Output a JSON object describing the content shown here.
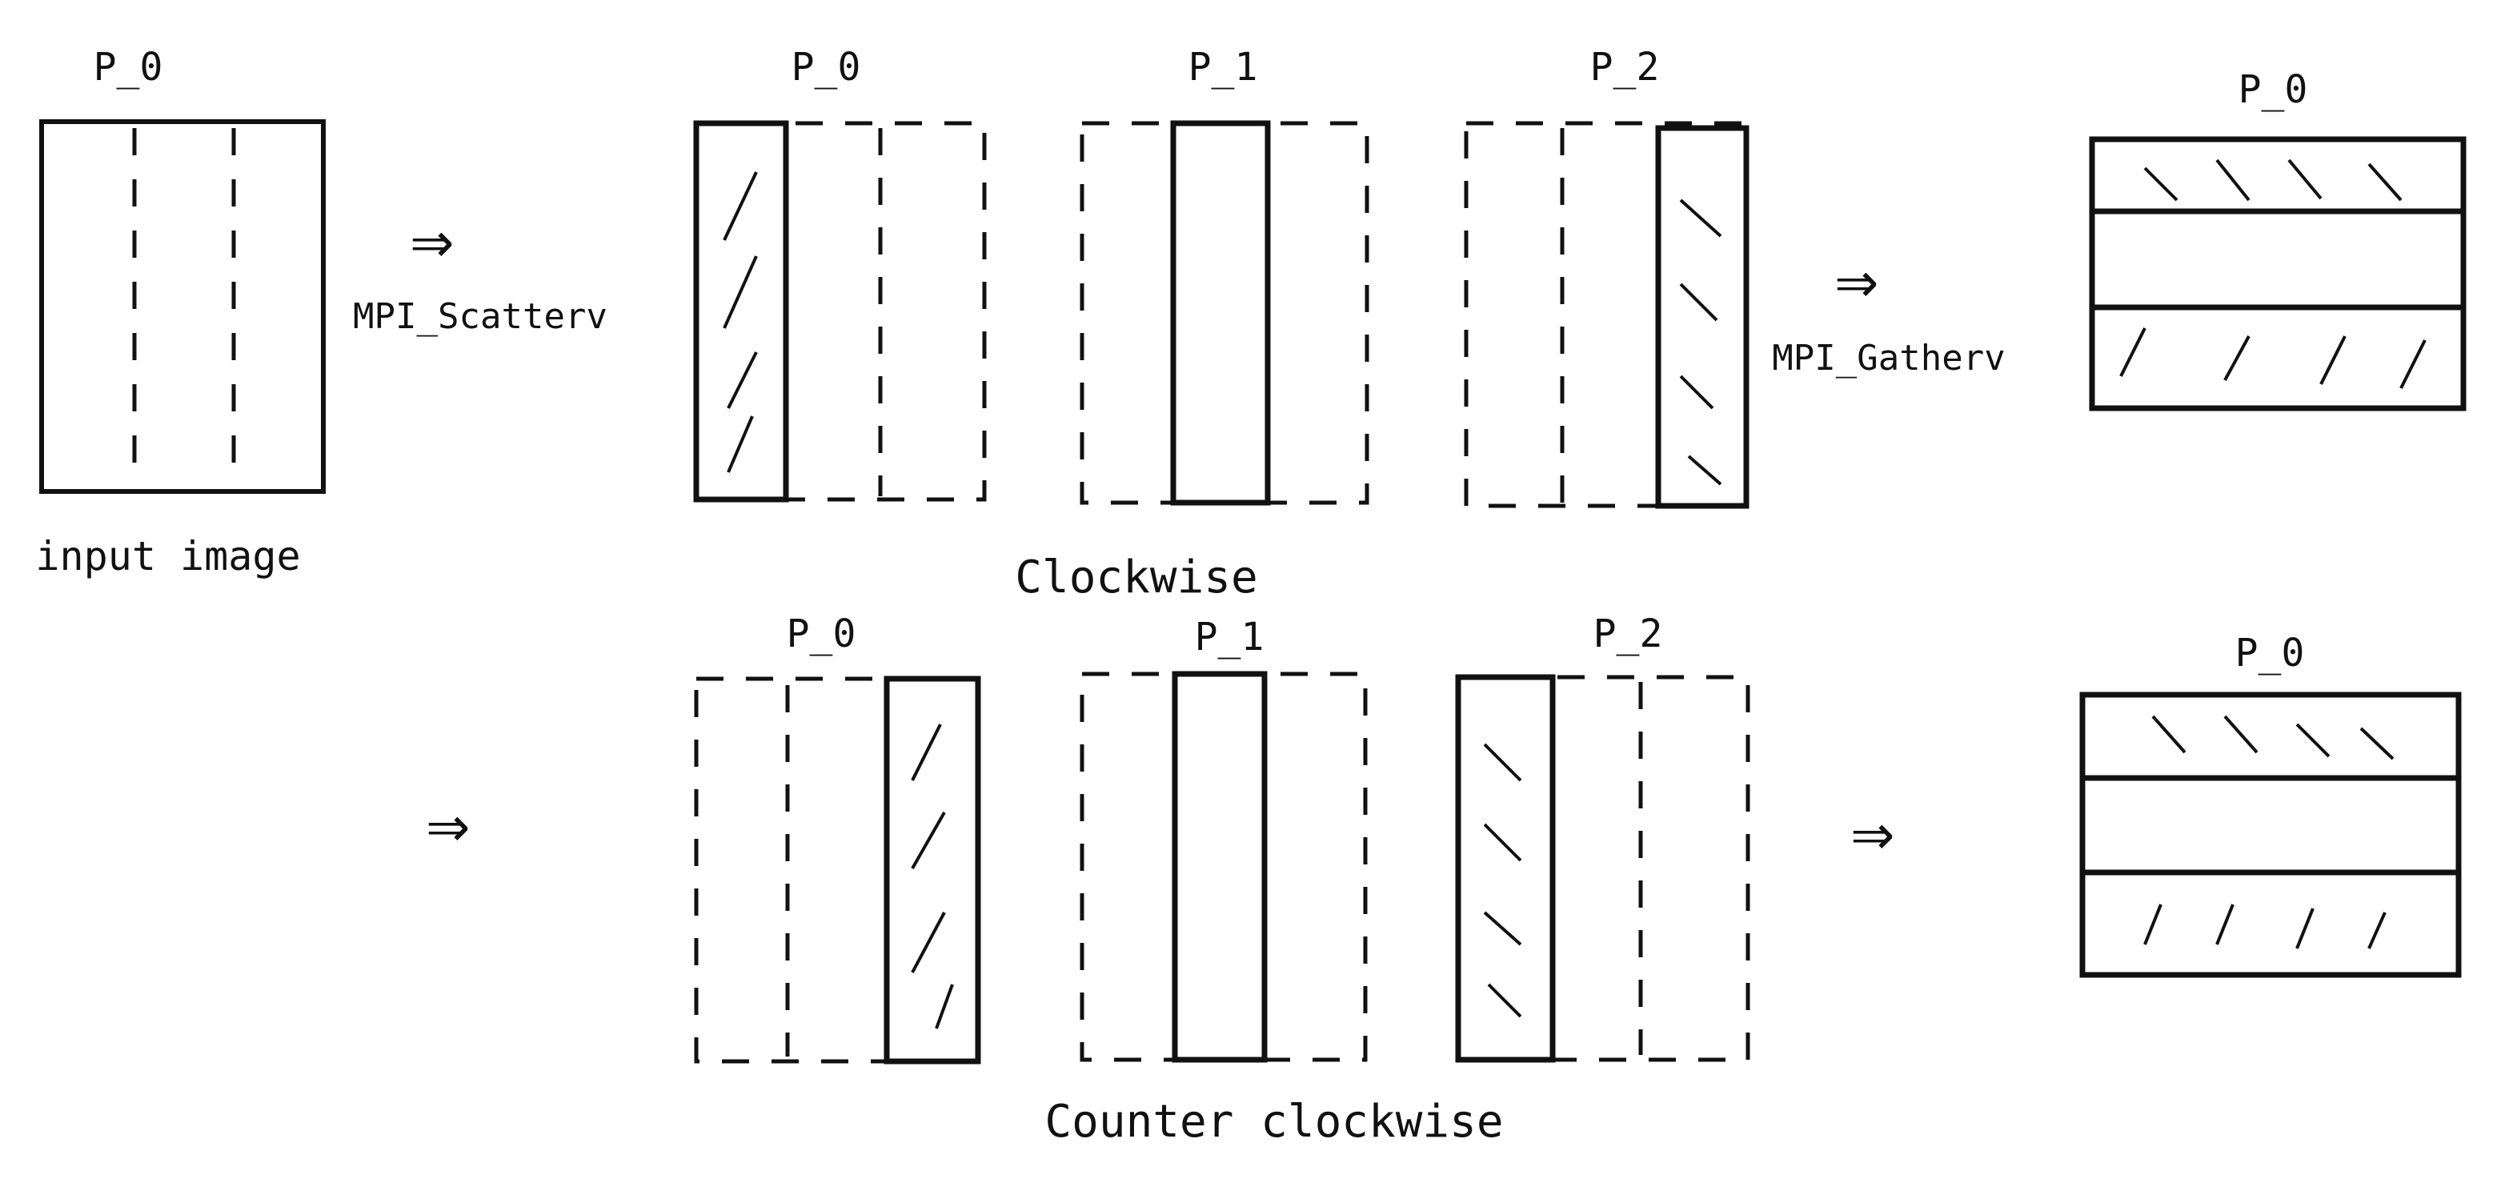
{
  "labels": {
    "input_title": "P_0",
    "input_caption": "input image",
    "scatter_label": "MPI_Scatterv",
    "gather_label": "MPI_Gatherv",
    "cw_p0": "P_0",
    "cw_p1": "P_1",
    "cw_p2": "P_2",
    "cw_result_title": "P_0",
    "cw_caption": "Clockwise",
    "ccw_p0": "P_0",
    "ccw_p1": "P_1",
    "ccw_p2": "P_2",
    "ccw_result_title": "P_0",
    "ccw_caption": "Counter clockwise"
  },
  "arrow_glyph": "⇒",
  "colors": {
    "ink": "#111111",
    "background": "#ffffff"
  }
}
